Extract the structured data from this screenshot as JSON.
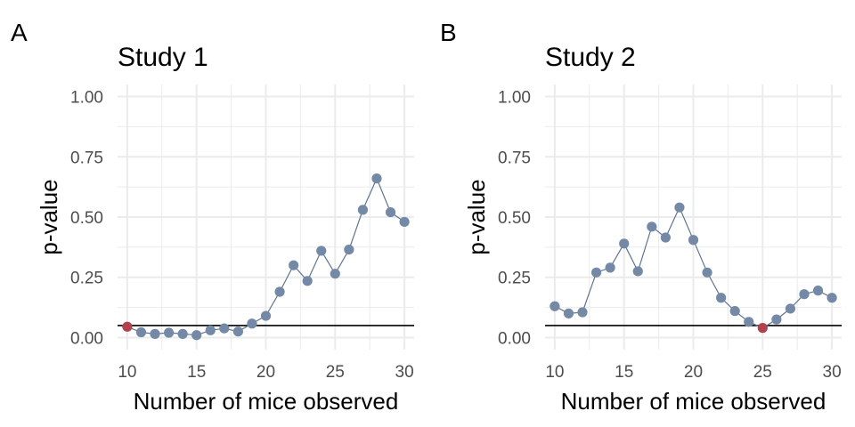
{
  "chart_data": [
    {
      "type": "line",
      "tag": "A",
      "title": "Study 1",
      "xlabel": "Number of mice observed",
      "ylabel": "p-value",
      "xlim": [
        9.3,
        30.7
      ],
      "ylim": [
        -0.05,
        1.05
      ],
      "xticks": [
        10,
        15,
        20,
        25,
        30
      ],
      "yticks": [
        0.0,
        0.25,
        0.5,
        0.75,
        1.0
      ],
      "ytick_labels": [
        "0.00",
        "0.25",
        "0.50",
        "0.75",
        "1.00"
      ],
      "xtick_labels": [
        "10",
        "15",
        "20",
        "25",
        "30"
      ],
      "reference_line": 0.05,
      "grid": true,
      "highlight_x": 10,
      "x": [
        10,
        11,
        12,
        13,
        14,
        15,
        16,
        17,
        18,
        19,
        20,
        21,
        22,
        23,
        24,
        25,
        26,
        27,
        28,
        29,
        30
      ],
      "values": [
        0.045,
        0.022,
        0.015,
        0.02,
        0.015,
        0.01,
        0.03,
        0.038,
        0.025,
        0.058,
        0.09,
        0.19,
        0.3,
        0.235,
        0.36,
        0.265,
        0.365,
        0.53,
        0.66,
        0.52,
        0.48
      ]
    },
    {
      "type": "line",
      "tag": "B",
      "title": "Study 2",
      "xlabel": "Number of mice observed",
      "ylabel": "p-value",
      "xlim": [
        9.3,
        30.7
      ],
      "ylim": [
        -0.05,
        1.05
      ],
      "xticks": [
        10,
        15,
        20,
        25,
        30
      ],
      "yticks": [
        0.0,
        0.25,
        0.5,
        0.75,
        1.0
      ],
      "ytick_labels": [
        "0.00",
        "0.25",
        "0.50",
        "0.75",
        "1.00"
      ],
      "xtick_labels": [
        "10",
        "15",
        "20",
        "25",
        "30"
      ],
      "reference_line": 0.05,
      "grid": true,
      "highlight_x": 25,
      "x": [
        10,
        11,
        12,
        13,
        14,
        15,
        16,
        17,
        18,
        19,
        20,
        21,
        22,
        23,
        24,
        25,
        26,
        27,
        28,
        29,
        30
      ],
      "values": [
        0.13,
        0.1,
        0.105,
        0.27,
        0.29,
        0.39,
        0.275,
        0.46,
        0.415,
        0.54,
        0.405,
        0.27,
        0.165,
        0.11,
        0.065,
        0.04,
        0.075,
        0.12,
        0.18,
        0.195,
        0.165
      ]
    }
  ],
  "colors": {
    "point": "#7489a6",
    "line": "#5f7590",
    "highlight": "#b04250",
    "grid": "#ebebeb",
    "reference": "#000000"
  }
}
